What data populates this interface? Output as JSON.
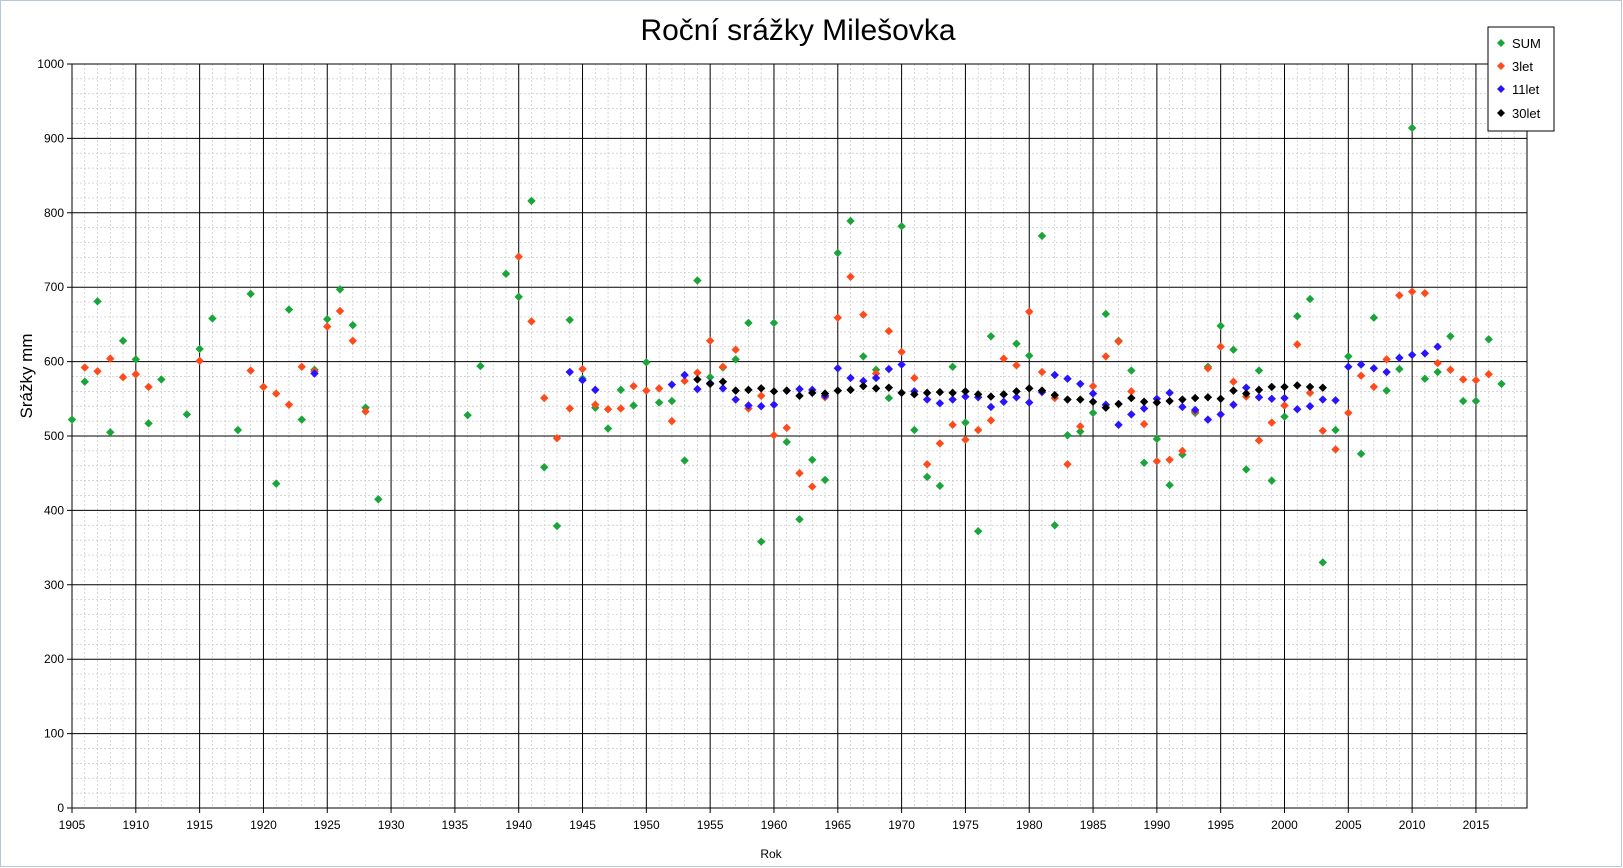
{
  "chart_data": {
    "type": "scatter",
    "title": "Roční srážky Milešovka",
    "xlabel": "Rok",
    "ylabel": "Srážky  mm",
    "xlim": [
      1905,
      2019
    ],
    "ylim": [
      0,
      1000
    ],
    "x_major_step": 5,
    "x_minor_step": 1,
    "y_major_step": 100,
    "y_minor_step": 20,
    "grid": true,
    "legend_position": "top-right",
    "xticks": [
      "1905",
      "1910",
      "1915",
      "1920",
      "1925",
      "1930",
      "1935",
      "1940",
      "1945",
      "1950",
      "1955",
      "1960",
      "1965",
      "1970",
      "1975",
      "1980",
      "1985",
      "1990",
      "1995",
      "2000",
      "2005",
      "2010",
      "2015"
    ],
    "yticks": [
      "0",
      "100",
      "200",
      "300",
      "400",
      "500",
      "600",
      "700",
      "800",
      "900",
      "1000"
    ],
    "series": [
      {
        "name": "SUM",
        "color": "#1aa53a",
        "points": [
          [
            1905,
            522
          ],
          [
            1906,
            573
          ],
          [
            1907,
            681
          ],
          [
            1908,
            505
          ],
          [
            1909,
            628
          ],
          [
            1910,
            603
          ],
          [
            1911,
            517
          ],
          [
            1912,
            576
          ],
          [
            1914,
            529
          ],
          [
            1915,
            617
          ],
          [
            1916,
            658
          ],
          [
            1918,
            508
          ],
          [
            1919,
            691
          ],
          [
            1920,
            566
          ],
          [
            1921,
            436
          ],
          [
            1922,
            670
          ],
          [
            1923,
            522
          ],
          [
            1924,
            589
          ],
          [
            1925,
            657
          ],
          [
            1926,
            697
          ],
          [
            1927,
            649
          ],
          [
            1928,
            538
          ],
          [
            1929,
            415
          ],
          [
            1936,
            528
          ],
          [
            1937,
            594
          ],
          [
            1939,
            718
          ],
          [
            1940,
            687
          ],
          [
            1941,
            816
          ],
          [
            1942,
            458
          ],
          [
            1943,
            379
          ],
          [
            1944,
            656
          ],
          [
            1945,
            577
          ],
          [
            1946,
            538
          ],
          [
            1947,
            510
          ],
          [
            1948,
            562
          ],
          [
            1949,
            541
          ],
          [
            1950,
            599
          ],
          [
            1951,
            545
          ],
          [
            1952,
            547
          ],
          [
            1953,
            467
          ],
          [
            1954,
            709
          ],
          [
            1955,
            579
          ],
          [
            1956,
            592
          ],
          [
            1957,
            603
          ],
          [
            1958,
            652
          ],
          [
            1959,
            358
          ],
          [
            1960,
            652
          ],
          [
            1961,
            492
          ],
          [
            1962,
            388
          ],
          [
            1963,
            468
          ],
          [
            1964,
            441
          ],
          [
            1965,
            746
          ],
          [
            1966,
            789
          ],
          [
            1967,
            607
          ],
          [
            1968,
            589
          ],
          [
            1969,
            551
          ],
          [
            1970,
            782
          ],
          [
            1971,
            508
          ],
          [
            1972,
            445
          ],
          [
            1973,
            433
          ],
          [
            1974,
            593
          ],
          [
            1975,
            518
          ],
          [
            1976,
            372
          ],
          [
            1977,
            634
          ],
          [
            1978,
            556
          ],
          [
            1979,
            624
          ],
          [
            1980,
            608
          ],
          [
            1981,
            769
          ],
          [
            1982,
            380
          ],
          [
            1983,
            501
          ],
          [
            1984,
            506
          ],
          [
            1985,
            531
          ],
          [
            1986,
            664
          ],
          [
            1987,
            628
          ],
          [
            1988,
            588
          ],
          [
            1989,
            464
          ],
          [
            1990,
            496
          ],
          [
            1991,
            434
          ],
          [
            1992,
            475
          ],
          [
            1993,
            531
          ],
          [
            1994,
            593
          ],
          [
            1995,
            648
          ],
          [
            1996,
            616
          ],
          [
            1997,
            455
          ],
          [
            1998,
            588
          ],
          [
            1999,
            440
          ],
          [
            2000,
            526
          ],
          [
            2001,
            661
          ],
          [
            2002,
            684
          ],
          [
            2003,
            330
          ],
          [
            2004,
            508
          ],
          [
            2005,
            607
          ],
          [
            2006,
            476
          ],
          [
            2007,
            659
          ],
          [
            2008,
            561
          ],
          [
            2009,
            590
          ],
          [
            2010,
            914
          ],
          [
            2011,
            577
          ],
          [
            2012,
            586
          ],
          [
            2013,
            634
          ],
          [
            2014,
            547
          ],
          [
            2015,
            547
          ],
          [
            2016,
            630
          ],
          [
            2017,
            570
          ]
        ]
      },
      {
        "name": "3let",
        "color": "#ff4a1c",
        "points": [
          [
            1906,
            592
          ],
          [
            1907,
            587
          ],
          [
            1908,
            604
          ],
          [
            1909,
            579
          ],
          [
            1910,
            583
          ],
          [
            1911,
            566
          ],
          [
            1915,
            601
          ],
          [
            1919,
            588
          ],
          [
            1920,
            566
          ],
          [
            1921,
            557
          ],
          [
            1922,
            542
          ],
          [
            1923,
            593
          ],
          [
            1924,
            587
          ],
          [
            1925,
            647
          ],
          [
            1926,
            668
          ],
          [
            1927,
            628
          ],
          [
            1928,
            533
          ],
          [
            1940,
            741
          ],
          [
            1941,
            654
          ],
          [
            1942,
            551
          ],
          [
            1943,
            497
          ],
          [
            1944,
            537
          ],
          [
            1945,
            590
          ],
          [
            1946,
            542
          ],
          [
            1947,
            536
          ],
          [
            1948,
            537
          ],
          [
            1949,
            567
          ],
          [
            1950,
            561
          ],
          [
            1951,
            564
          ],
          [
            1952,
            520
          ],
          [
            1953,
            574
          ],
          [
            1954,
            585
          ],
          [
            1955,
            628
          ],
          [
            1956,
            593
          ],
          [
            1957,
            616
          ],
          [
            1958,
            537
          ],
          [
            1959,
            554
          ],
          [
            1960,
            501
          ],
          [
            1961,
            511
          ],
          [
            1962,
            450
          ],
          [
            1963,
            432
          ],
          [
            1964,
            552
          ],
          [
            1965,
            659
          ],
          [
            1966,
            714
          ],
          [
            1967,
            663
          ],
          [
            1968,
            584
          ],
          [
            1969,
            641
          ],
          [
            1970,
            613
          ],
          [
            1971,
            578
          ],
          [
            1972,
            462
          ],
          [
            1973,
            490
          ],
          [
            1974,
            515
          ],
          [
            1975,
            495
          ],
          [
            1976,
            508
          ],
          [
            1977,
            521
          ],
          [
            1978,
            604
          ],
          [
            1979,
            595
          ],
          [
            1980,
            667
          ],
          [
            1981,
            586
          ],
          [
            1982,
            551
          ],
          [
            1983,
            462
          ],
          [
            1984,
            513
          ],
          [
            1985,
            567
          ],
          [
            1986,
            607
          ],
          [
            1987,
            627
          ],
          [
            1988,
            560
          ],
          [
            1989,
            516
          ],
          [
            1990,
            466
          ],
          [
            1991,
            468
          ],
          [
            1992,
            480
          ],
          [
            1993,
            533
          ],
          [
            1994,
            591
          ],
          [
            1995,
            620
          ],
          [
            1996,
            573
          ],
          [
            1997,
            553
          ],
          [
            1998,
            494
          ],
          [
            1999,
            518
          ],
          [
            2000,
            541
          ],
          [
            2001,
            623
          ],
          [
            2002,
            558
          ],
          [
            2003,
            507
          ],
          [
            2004,
            482
          ],
          [
            2005,
            531
          ],
          [
            2006,
            581
          ],
          [
            2007,
            566
          ],
          [
            2008,
            603
          ],
          [
            2009,
            689
          ],
          [
            2010,
            694
          ],
          [
            2011,
            692
          ],
          [
            2012,
            598
          ],
          [
            2013,
            589
          ],
          [
            2014,
            576
          ],
          [
            2015,
            575
          ],
          [
            2016,
            583
          ]
        ]
      },
      {
        "name": "11let",
        "color": "#2a14ff",
        "points": [
          [
            1924,
            584
          ],
          [
            1944,
            586
          ],
          [
            1945,
            575
          ],
          [
            1946,
            562
          ],
          [
            1952,
            569
          ],
          [
            1953,
            582
          ],
          [
            1954,
            563
          ],
          [
            1955,
            571
          ],
          [
            1956,
            564
          ],
          [
            1957,
            549
          ],
          [
            1958,
            541
          ],
          [
            1959,
            540
          ],
          [
            1960,
            542
          ],
          [
            1961,
            561
          ],
          [
            1962,
            563
          ],
          [
            1963,
            562
          ],
          [
            1964,
            554
          ],
          [
            1965,
            591
          ],
          [
            1966,
            578
          ],
          [
            1967,
            574
          ],
          [
            1968,
            578
          ],
          [
            1969,
            590
          ],
          [
            1970,
            596
          ],
          [
            1971,
            560
          ],
          [
            1972,
            549
          ],
          [
            1973,
            544
          ],
          [
            1974,
            549
          ],
          [
            1975,
            553
          ],
          [
            1976,
            552
          ],
          [
            1977,
            539
          ],
          [
            1978,
            546
          ],
          [
            1979,
            552
          ],
          [
            1980,
            545
          ],
          [
            1981,
            559
          ],
          [
            1982,
            582
          ],
          [
            1983,
            577
          ],
          [
            1984,
            570
          ],
          [
            1985,
            557
          ],
          [
            1986,
            542
          ],
          [
            1987,
            515
          ],
          [
            1988,
            529
          ],
          [
            1989,
            537
          ],
          [
            1990,
            550
          ],
          [
            1991,
            558
          ],
          [
            1992,
            539
          ],
          [
            1993,
            535
          ],
          [
            1994,
            522
          ],
          [
            1995,
            529
          ],
          [
            1996,
            542
          ],
          [
            1997,
            565
          ],
          [
            1998,
            552
          ],
          [
            1999,
            550
          ],
          [
            2000,
            551
          ],
          [
            2001,
            536
          ],
          [
            2002,
            540
          ],
          [
            2003,
            549
          ],
          [
            2004,
            548
          ],
          [
            2005,
            593
          ],
          [
            2006,
            596
          ],
          [
            2007,
            591
          ],
          [
            2008,
            586
          ],
          [
            2009,
            605
          ],
          [
            2010,
            609
          ],
          [
            2011,
            611
          ],
          [
            2012,
            620
          ]
        ]
      },
      {
        "name": "30let",
        "color": "#000000",
        "points": [
          [
            1954,
            576
          ],
          [
            1955,
            570
          ],
          [
            1956,
            573
          ],
          [
            1957,
            561
          ],
          [
            1958,
            562
          ],
          [
            1959,
            564
          ],
          [
            1960,
            560
          ],
          [
            1961,
            561
          ],
          [
            1962,
            554
          ],
          [
            1963,
            558
          ],
          [
            1964,
            557
          ],
          [
            1965,
            561
          ],
          [
            1966,
            562
          ],
          [
            1967,
            567
          ],
          [
            1968,
            564
          ],
          [
            1969,
            565
          ],
          [
            1970,
            558
          ],
          [
            1971,
            556
          ],
          [
            1972,
            558
          ],
          [
            1973,
            559
          ],
          [
            1974,
            558
          ],
          [
            1975,
            560
          ],
          [
            1976,
            556
          ],
          [
            1977,
            553
          ],
          [
            1978,
            556
          ],
          [
            1979,
            560
          ],
          [
            1980,
            564
          ],
          [
            1981,
            561
          ],
          [
            1982,
            555
          ],
          [
            1983,
            549
          ],
          [
            1984,
            549
          ],
          [
            1985,
            546
          ],
          [
            1986,
            538
          ],
          [
            1987,
            543
          ],
          [
            1988,
            551
          ],
          [
            1989,
            546
          ],
          [
            1990,
            545
          ],
          [
            1991,
            547
          ],
          [
            1992,
            549
          ],
          [
            1993,
            551
          ],
          [
            1994,
            552
          ],
          [
            1995,
            550
          ],
          [
            1996,
            561
          ],
          [
            1997,
            557
          ],
          [
            1998,
            562
          ],
          [
            1999,
            566
          ],
          [
            2000,
            566
          ],
          [
            2001,
            568
          ],
          [
            2002,
            566
          ],
          [
            2003,
            565
          ]
        ]
      }
    ]
  }
}
